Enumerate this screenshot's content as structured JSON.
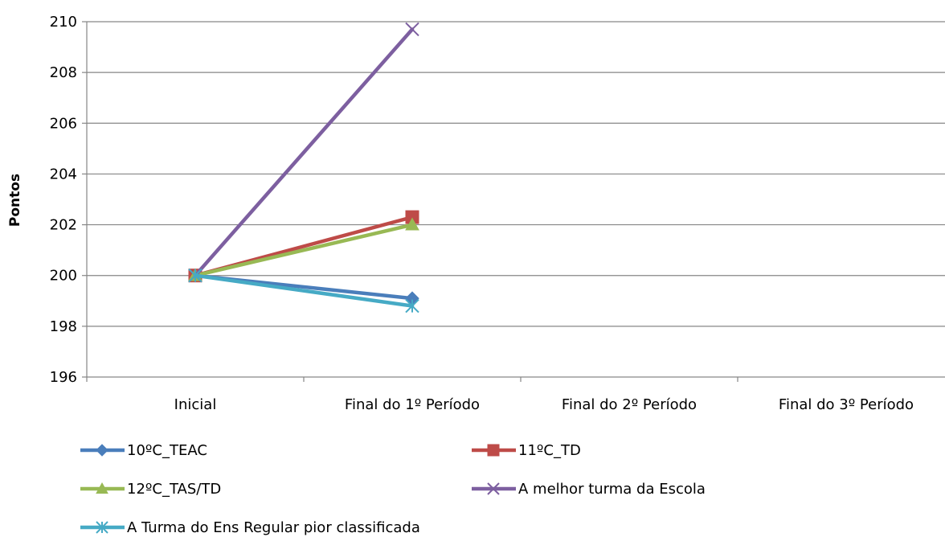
{
  "chart_data": {
    "type": "line",
    "title": "",
    "xlabel": "",
    "ylabel": "Pontos",
    "categories": [
      "Inicial",
      "Final do 1º Período",
      "Final do 2º Período",
      "Final do 3º Período"
    ],
    "ylim": [
      196,
      210
    ],
    "yticks": [
      196,
      198,
      200,
      202,
      204,
      206,
      208,
      210
    ],
    "grid": "horizontal",
    "legend_position": "bottom",
    "series": [
      {
        "name": "10ºC_TEAC",
        "values": [
          200,
          199.1,
          null,
          null
        ],
        "color": "#4a7ebb",
        "marker": "diamond"
      },
      {
        "name": "11ºC_TD",
        "values": [
          200,
          202.3,
          null,
          null
        ],
        "color": "#be4b48",
        "marker": "square"
      },
      {
        "name": "12ºC_TAS/TD",
        "values": [
          200,
          202.0,
          null,
          null
        ],
        "color": "#98b954",
        "marker": "triangle"
      },
      {
        "name": "A melhor turma da Escola",
        "values": [
          200,
          209.7,
          null,
          null
        ],
        "color": "#7d5fa0",
        "marker": "x"
      },
      {
        "name": "A Turma do Ens Regular pior classificada",
        "values": [
          200,
          198.8,
          null,
          null
        ],
        "color": "#46aac5",
        "marker": "asterisk"
      }
    ]
  }
}
